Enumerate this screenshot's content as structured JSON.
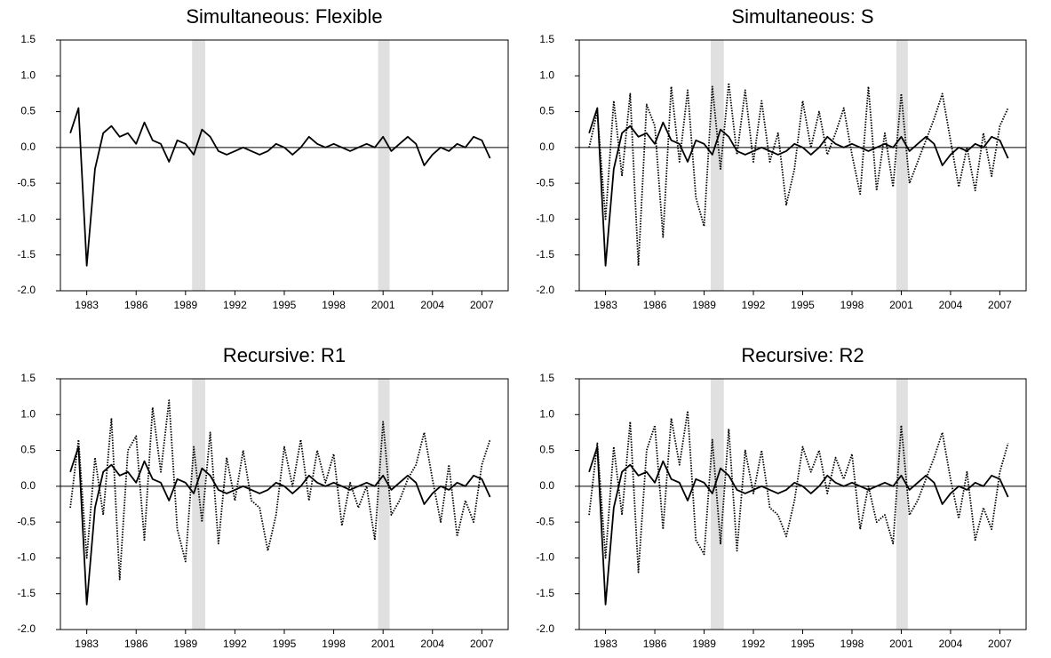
{
  "chart_data": [
    {
      "type": "line",
      "title": "Simultaneous: Flexible",
      "x": [
        1982.0,
        1982.5,
        1983.0,
        1983.5,
        1984.0,
        1984.5,
        1985.0,
        1985.5,
        1986.0,
        1986.5,
        1987.0,
        1987.5,
        1988.0,
        1988.5,
        1989.0,
        1989.5,
        1990.0,
        1990.5,
        1991.0,
        1991.5,
        1992.0,
        1992.5,
        1993.0,
        1993.5,
        1994.0,
        1994.5,
        1995.0,
        1995.5,
        1996.0,
        1996.5,
        1997.0,
        1997.5,
        1998.0,
        1998.5,
        1999.0,
        1999.5,
        2000.0,
        2000.5,
        2001.0,
        2001.5,
        2002.0,
        2002.5,
        2003.0,
        2003.5,
        2004.0,
        2004.5,
        2005.0,
        2005.5,
        2006.0,
        2006.5,
        2007.0,
        2007.5
      ],
      "xlim": [
        1981.4,
        2008.6
      ],
      "xticks": [
        1983,
        1986,
        1989,
        1992,
        1995,
        1998,
        2001,
        2004,
        2007
      ],
      "ylim": [
        -2,
        1.5
      ],
      "yticks": [
        {
          "value": -2,
          "label": "-2.0"
        },
        -1.5,
        {
          "value": -1,
          "label": "-1.0"
        },
        -0.5,
        {
          "value": 0,
          "label": "0.0"
        },
        0.5,
        {
          "value": 1,
          "label": "1.0"
        },
        1.5
      ],
      "shaded": [
        [
          1989.4,
          1990.2
        ],
        [
          2000.7,
          2001.4
        ]
      ],
      "series": [
        {
          "style": "solid",
          "color": "#000000",
          "values": [
            0.2,
            0.55,
            -1.65,
            -0.3,
            0.2,
            0.3,
            0.15,
            0.2,
            0.05,
            0.35,
            0.1,
            0.05,
            -0.2,
            0.1,
            0.05,
            -0.1,
            0.25,
            0.15,
            -0.05,
            -0.1,
            -0.05,
            0.0,
            -0.05,
            -0.1,
            -0.05,
            0.05,
            0.0,
            -0.1,
            0.0,
            0.15,
            0.05,
            0.0,
            0.05,
            0.0,
            -0.05,
            0.0,
            0.05,
            0.0,
            0.15,
            -0.05,
            0.05,
            0.15,
            0.05,
            -0.25,
            -0.1,
            0.0,
            -0.05,
            0.05,
            0.0,
            0.15,
            0.1,
            -0.15
          ]
        }
      ]
    },
    {
      "type": "line",
      "title": "Simultaneous: S",
      "x": [
        1982.0,
        1982.5,
        1983.0,
        1983.5,
        1984.0,
        1984.5,
        1985.0,
        1985.5,
        1986.0,
        1986.5,
        1987.0,
        1987.5,
        1988.0,
        1988.5,
        1989.0,
        1989.5,
        1990.0,
        1990.5,
        1991.0,
        1991.5,
        1992.0,
        1992.5,
        1993.0,
        1993.5,
        1994.0,
        1994.5,
        1995.0,
        1995.5,
        1996.0,
        1996.5,
        1997.0,
        1997.5,
        1998.0,
        1998.5,
        1999.0,
        1999.5,
        2000.0,
        2000.5,
        2001.0,
        2001.5,
        2002.0,
        2002.5,
        2003.0,
        2003.5,
        2004.0,
        2004.5,
        2005.0,
        2005.5,
        2006.0,
        2006.5,
        2007.0,
        2007.5
      ],
      "xlim": [
        1981.4,
        2008.6
      ],
      "xticks": [
        1983,
        1986,
        1989,
        1992,
        1995,
        1998,
        2001,
        2004,
        2007
      ],
      "ylim": [
        -2,
        1.5
      ],
      "yticks": [
        {
          "value": -2,
          "label": "-2.0"
        },
        -1.5,
        {
          "value": -1,
          "label": "-1.0"
        },
        -0.5,
        {
          "value": 0,
          "label": "0.0"
        },
        0.5,
        {
          "value": 1,
          "label": "1.0"
        },
        1.5
      ],
      "shaded": [
        [
          1989.4,
          1990.2
        ],
        [
          2000.7,
          2001.4
        ]
      ],
      "series": [
        {
          "style": "solid",
          "color": "#000000",
          "values": [
            0.2,
            0.55,
            -1.65,
            -0.3,
            0.2,
            0.3,
            0.15,
            0.2,
            0.05,
            0.35,
            0.1,
            0.05,
            -0.2,
            0.1,
            0.05,
            -0.1,
            0.25,
            0.15,
            -0.05,
            -0.1,
            -0.05,
            0.0,
            -0.05,
            -0.1,
            -0.05,
            0.05,
            0.0,
            -0.1,
            0.0,
            0.15,
            0.05,
            0.0,
            0.05,
            0.0,
            -0.05,
            0.0,
            0.05,
            0.0,
            0.15,
            -0.05,
            0.05,
            0.15,
            0.05,
            -0.25,
            -0.1,
            0.0,
            -0.05,
            0.05,
            0.0,
            0.15,
            0.1,
            -0.15
          ]
        },
        {
          "style": "dotted",
          "color": "#000000",
          "values": [
            0.0,
            0.5,
            -1.0,
            0.65,
            -0.4,
            0.75,
            -1.65,
            0.6,
            0.3,
            -1.25,
            0.85,
            -0.2,
            0.8,
            -0.7,
            -1.1,
            0.85,
            -0.3,
            0.9,
            -0.1,
            0.8,
            -0.2,
            0.65,
            -0.2,
            0.2,
            -0.8,
            -0.3,
            0.65,
            0.0,
            0.5,
            -0.1,
            0.2,
            0.55,
            -0.1,
            -0.65,
            0.85,
            -0.6,
            0.2,
            -0.55,
            0.75,
            -0.5,
            -0.2,
            0.1,
            0.4,
            0.75,
            0.1,
            -0.55,
            0.0,
            -0.6,
            0.2,
            -0.4,
            0.3,
            0.55
          ]
        }
      ]
    },
    {
      "type": "line",
      "title": "Recursive: R1",
      "x": [
        1982.0,
        1982.5,
        1983.0,
        1983.5,
        1984.0,
        1984.5,
        1985.0,
        1985.5,
        1986.0,
        1986.5,
        1987.0,
        1987.5,
        1988.0,
        1988.5,
        1989.0,
        1989.5,
        1990.0,
        1990.5,
        1991.0,
        1991.5,
        1992.0,
        1992.5,
        1993.0,
        1993.5,
        1994.0,
        1994.5,
        1995.0,
        1995.5,
        1996.0,
        1996.5,
        1997.0,
        1997.5,
        1998.0,
        1998.5,
        1999.0,
        1999.5,
        2000.0,
        2000.5,
        2001.0,
        2001.5,
        2002.0,
        2002.5,
        2003.0,
        2003.5,
        2004.0,
        2004.5,
        2005.0,
        2005.5,
        2006.0,
        2006.5,
        2007.0,
        2007.5
      ],
      "xlim": [
        1981.4,
        2008.6
      ],
      "xticks": [
        1983,
        1986,
        1989,
        1992,
        1995,
        1998,
        2001,
        2004,
        2007
      ],
      "ylim": [
        -2,
        1.5
      ],
      "yticks": [
        {
          "value": -2,
          "label": "-2.0"
        },
        -1.5,
        {
          "value": -1,
          "label": "-1.0"
        },
        -0.5,
        {
          "value": 0,
          "label": "0.0"
        },
        0.5,
        {
          "value": 1,
          "label": "1.0"
        },
        1.5
      ],
      "shaded": [
        [
          1989.4,
          1990.2
        ],
        [
          2000.7,
          2001.4
        ]
      ],
      "series": [
        {
          "style": "solid",
          "color": "#000000",
          "values": [
            0.2,
            0.55,
            -1.65,
            -0.3,
            0.2,
            0.3,
            0.15,
            0.2,
            0.05,
            0.35,
            0.1,
            0.05,
            -0.2,
            0.1,
            0.05,
            -0.1,
            0.25,
            0.15,
            -0.05,
            -0.1,
            -0.05,
            0.0,
            -0.05,
            -0.1,
            -0.05,
            0.05,
            0.0,
            -0.1,
            0.0,
            0.15,
            0.05,
            0.0,
            0.05,
            0.0,
            -0.05,
            0.0,
            0.05,
            0.0,
            0.15,
            -0.05,
            0.05,
            0.15,
            0.05,
            -0.25,
            -0.1,
            0.0,
            -0.05,
            0.05,
            0.0,
            0.15,
            0.1,
            -0.15
          ]
        },
        {
          "style": "dotted",
          "color": "#000000",
          "values": [
            -0.3,
            0.65,
            -1.0,
            0.4,
            -0.4,
            0.95,
            -1.3,
            0.5,
            0.7,
            -0.75,
            1.1,
            0.2,
            1.2,
            -0.6,
            -1.05,
            0.55,
            -0.5,
            0.75,
            -0.8,
            0.4,
            -0.2,
            0.5,
            -0.2,
            -0.3,
            -0.9,
            -0.4,
            0.55,
            0.0,
            0.65,
            -0.2,
            0.5,
            0.05,
            0.45,
            -0.55,
            0.05,
            -0.3,
            0.0,
            -0.75,
            0.9,
            -0.4,
            -0.2,
            0.1,
            0.3,
            0.75,
            0.1,
            -0.5,
            0.3,
            -0.7,
            -0.2,
            -0.5,
            0.3,
            0.65
          ]
        }
      ]
    },
    {
      "type": "line",
      "title": "Recursive: R2",
      "x": [
        1982.0,
        1982.5,
        1983.0,
        1983.5,
        1984.0,
        1984.5,
        1985.0,
        1985.5,
        1986.0,
        1986.5,
        1987.0,
        1987.5,
        1988.0,
        1988.5,
        1989.0,
        1989.5,
        1990.0,
        1990.5,
        1991.0,
        1991.5,
        1992.0,
        1992.5,
        1993.0,
        1993.5,
        1994.0,
        1994.5,
        1995.0,
        1995.5,
        1996.0,
        1996.5,
        1997.0,
        1997.5,
        1998.0,
        1998.5,
        1999.0,
        1999.5,
        2000.0,
        2000.5,
        2001.0,
        2001.5,
        2002.0,
        2002.5,
        2003.0,
        2003.5,
        2004.0,
        2004.5,
        2005.0,
        2005.5,
        2006.0,
        2006.5,
        2007.0,
        2007.5
      ],
      "xlim": [
        1981.4,
        2008.6
      ],
      "xticks": [
        1983,
        1986,
        1989,
        1992,
        1995,
        1998,
        2001,
        2004,
        2007
      ],
      "ylim": [
        -2,
        1.5
      ],
      "yticks": [
        {
          "value": -2,
          "label": "-2.0"
        },
        -1.5,
        {
          "value": -1,
          "label": "-1.0"
        },
        -0.5,
        {
          "value": 0,
          "label": "0.0"
        },
        0.5,
        {
          "value": 1,
          "label": "1.0"
        },
        1.5
      ],
      "shaded": [
        [
          1989.4,
          1990.2
        ],
        [
          2000.7,
          2001.4
        ]
      ],
      "series": [
        {
          "style": "solid",
          "color": "#000000",
          "values": [
            0.2,
            0.55,
            -1.65,
            -0.3,
            0.2,
            0.3,
            0.15,
            0.2,
            0.05,
            0.35,
            0.1,
            0.05,
            -0.2,
            0.1,
            0.05,
            -0.1,
            0.25,
            0.15,
            -0.05,
            -0.1,
            -0.05,
            0.0,
            -0.05,
            -0.1,
            -0.05,
            0.05,
            0.0,
            -0.1,
            0.0,
            0.15,
            0.05,
            0.0,
            0.05,
            0.0,
            -0.05,
            0.0,
            0.05,
            0.0,
            0.15,
            -0.05,
            0.05,
            0.15,
            0.05,
            -0.25,
            -0.1,
            0.0,
            -0.05,
            0.05,
            0.0,
            0.15,
            0.1,
            -0.15
          ]
        },
        {
          "style": "dotted",
          "color": "#000000",
          "values": [
            -0.4,
            0.6,
            -1.0,
            0.55,
            -0.4,
            0.9,
            -1.2,
            0.5,
            0.85,
            -0.6,
            0.95,
            0.3,
            1.05,
            -0.75,
            -0.95,
            0.65,
            -0.8,
            0.8,
            -0.9,
            0.5,
            -0.1,
            0.5,
            -0.3,
            -0.4,
            -0.7,
            -0.2,
            0.55,
            0.2,
            0.5,
            -0.1,
            0.4,
            0.1,
            0.45,
            -0.6,
            0.0,
            -0.5,
            -0.4,
            -0.8,
            0.85,
            -0.4,
            -0.2,
            0.1,
            0.4,
            0.75,
            0.1,
            -0.45,
            0.2,
            -0.75,
            -0.3,
            -0.6,
            0.2,
            0.6
          ]
        }
      ]
    }
  ]
}
